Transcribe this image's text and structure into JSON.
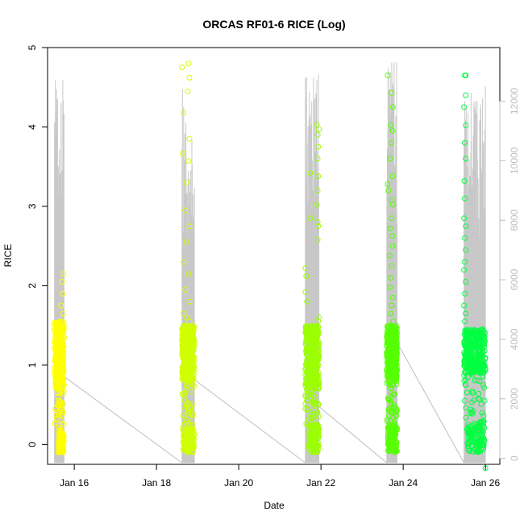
{
  "chart_data": {
    "type": "scatter",
    "title": "ORCAS RF01-6 RICE (Log)",
    "xlabel": "Date",
    "ylabel": "RICE",
    "x_unit": "days (January)",
    "xlim": [
      15.35,
      26.35
    ],
    "ylim": [
      -0.25,
      5
    ],
    "y_ticks": [
      0,
      1,
      2,
      3,
      4,
      5
    ],
    "x_ticks": [
      {
        "value": 16,
        "label": "Jan 16"
      },
      {
        "value": 18,
        "label": "Jan 18"
      },
      {
        "value": 20,
        "label": "Jan 20"
      },
      {
        "value": 22,
        "label": "Jan 22"
      },
      {
        "value": 24,
        "label": "Jan 24"
      },
      {
        "value": 26,
        "label": "Jan 26"
      }
    ],
    "y2_ticks": [
      0,
      2000,
      4000,
      6000,
      8000,
      10000,
      12000
    ],
    "y2lim": [
      -200,
      13800
    ],
    "y2_color": "#bebebe",
    "altitude_line_color": "#bebebe",
    "grid": false,
    "legend": "none",
    "flights": [
      {
        "start": 15.52,
        "end": 15.75,
        "color": "#ffff00",
        "bulk": [
          0.7,
          1.55
        ],
        "low": [
          -0.1,
          0.15
        ],
        "low_window": [
          15.62,
          15.75
        ],
        "high": [
          [
            15.72,
            1.9
          ],
          [
            15.7,
            2.05
          ],
          [
            15.74,
            2.15
          ],
          [
            15.68,
            1.75
          ],
          [
            15.73,
            1.65
          ],
          [
            15.6,
            0.65
          ],
          [
            15.75,
            0.75
          ],
          [
            15.71,
            0.4
          ],
          [
            15.68,
            0.3
          ]
        ],
        "alt_spikes": [
          [
            15.54,
            12700
          ],
          [
            15.57,
            12400
          ],
          [
            15.59,
            9500
          ],
          [
            15.63,
            7800
          ],
          [
            15.66,
            8500
          ],
          [
            15.69,
            8200
          ],
          [
            15.72,
            12700
          ]
        ]
      },
      {
        "start": 18.62,
        "end": 18.92,
        "color": "#d0ff00",
        "bulk": [
          0.8,
          1.5
        ],
        "low": [
          -0.1,
          0.2
        ],
        "low_window": [
          18.65,
          18.92
        ],
        "high": [
          [
            18.62,
            4.75
          ],
          [
            18.78,
            4.8
          ],
          [
            18.8,
            4.62
          ],
          [
            18.76,
            4.45
          ],
          [
            18.66,
            4.18
          ],
          [
            18.8,
            3.85
          ],
          [
            18.64,
            3.67
          ],
          [
            18.78,
            3.57
          ],
          [
            18.72,
            3.3
          ],
          [
            18.7,
            2.95
          ],
          [
            18.8,
            2.75
          ],
          [
            18.72,
            2.55
          ],
          [
            18.66,
            2.3
          ],
          [
            18.78,
            2.15
          ],
          [
            18.7,
            1.95
          ],
          [
            18.8,
            1.8
          ],
          [
            18.66,
            1.65
          ],
          [
            18.72,
            1.6
          ],
          [
            18.8,
            1.55
          ],
          [
            18.68,
            0.65
          ],
          [
            18.76,
            0.45
          ],
          [
            18.7,
            0.35
          ]
        ],
        "alt_spikes": [
          [
            18.63,
            12400
          ],
          [
            18.66,
            11800
          ],
          [
            18.69,
            10900
          ],
          [
            18.72,
            8800
          ],
          [
            18.75,
            7200
          ],
          [
            18.8,
            9400
          ],
          [
            18.86,
            9500
          ]
        ]
      },
      {
        "start": 21.62,
        "end": 21.95,
        "color": "#9cff00",
        "bulk": [
          0.7,
          1.5
        ],
        "low": [
          -0.1,
          0.25
        ],
        "low_window": [
          21.7,
          21.95
        ],
        "high": [
          [
            21.9,
            4.03
          ],
          [
            21.95,
            3.97
          ],
          [
            21.92,
            3.9
          ],
          [
            21.93,
            3.75
          ],
          [
            21.92,
            3.6
          ],
          [
            21.93,
            3.38
          ],
          [
            21.74,
            3.42
          ],
          [
            21.92,
            3.2
          ],
          [
            21.9,
            3.02
          ],
          [
            21.93,
            2.75
          ],
          [
            21.92,
            2.58
          ],
          [
            21.74,
            2.85
          ],
          [
            21.92,
            2.8
          ],
          [
            21.62,
            2.22
          ],
          [
            21.64,
            2.12
          ],
          [
            21.62,
            1.92
          ],
          [
            21.66,
            1.8
          ],
          [
            21.95,
            1.6
          ],
          [
            21.93,
            1.55
          ],
          [
            21.62,
            0.62
          ],
          [
            21.66,
            0.55
          ],
          [
            21.9,
            0.4
          ],
          [
            21.94,
            0.35
          ]
        ],
        "alt_spikes": [
          [
            21.65,
            12800
          ],
          [
            21.72,
            12300
          ],
          [
            21.76,
            11200
          ],
          [
            21.8,
            9000
          ],
          [
            21.84,
            12000
          ],
          [
            21.9,
            12700
          ],
          [
            21.94,
            12900
          ]
        ]
      },
      {
        "start": 23.6,
        "end": 23.85,
        "color": "#55ff00",
        "bulk": [
          0.8,
          1.5
        ],
        "low": [
          -0.1,
          0.25
        ],
        "low_window": [
          23.62,
          23.85
        ],
        "high": [
          [
            23.62,
            4.65
          ],
          [
            23.72,
            4.43
          ],
          [
            23.75,
            4.25
          ],
          [
            23.7,
            4.02
          ],
          [
            23.74,
            3.95
          ],
          [
            23.72,
            3.8
          ],
          [
            23.68,
            3.6
          ],
          [
            23.74,
            3.38
          ],
          [
            23.75,
            3.02
          ],
          [
            23.62,
            3.28
          ],
          [
            23.64,
            3.2
          ],
          [
            23.72,
            3.08
          ],
          [
            23.72,
            2.85
          ],
          [
            23.68,
            2.72
          ],
          [
            23.73,
            2.63
          ],
          [
            23.74,
            2.5
          ],
          [
            23.67,
            2.38
          ],
          [
            23.72,
            2.25
          ],
          [
            23.7,
            2.1
          ],
          [
            23.68,
            1.98
          ],
          [
            23.75,
            1.85
          ],
          [
            23.72,
            1.75
          ],
          [
            23.7,
            1.65
          ],
          [
            23.76,
            1.55
          ],
          [
            23.68,
            0.75
          ],
          [
            23.72,
            0.65
          ],
          [
            23.78,
            0.5
          ],
          [
            23.73,
            0.4
          ]
        ],
        "alt_spikes": [
          [
            23.63,
            13000
          ],
          [
            23.65,
            12400
          ],
          [
            23.7,
            10800
          ],
          [
            23.74,
            12600
          ],
          [
            23.78,
            13300
          ],
          [
            23.84,
            13300
          ]
        ]
      },
      {
        "start": 25.48,
        "end": 26.0,
        "color": "#00ff40",
        "bulk": [
          0.9,
          1.45
        ],
        "low": [
          -0.1,
          0.25
        ],
        "low_window": [
          25.55,
          25.98
        ],
        "high": [
          [
            25.52,
            4.65
          ],
          [
            25.5,
            4.65
          ],
          [
            25.52,
            4.4
          ],
          [
            25.48,
            4.25
          ],
          [
            25.52,
            4.02
          ],
          [
            25.5,
            3.8
          ],
          [
            25.52,
            3.6
          ],
          [
            25.49,
            3.32
          ],
          [
            25.5,
            3.1
          ],
          [
            25.48,
            2.85
          ],
          [
            25.52,
            2.75
          ],
          [
            25.5,
            2.6
          ],
          [
            25.52,
            2.45
          ],
          [
            25.5,
            2.3
          ],
          [
            25.48,
            2.2
          ],
          [
            25.52,
            2.05
          ],
          [
            25.5,
            1.9
          ],
          [
            25.48,
            1.75
          ],
          [
            25.52,
            1.65
          ],
          [
            25.5,
            1.55
          ],
          [
            25.52,
            0.75
          ],
          [
            25.5,
            0.55
          ],
          [
            25.95,
            0.75
          ],
          [
            25.98,
            0.55
          ],
          [
            25.92,
            0.4
          ],
          [
            26.0,
            -0.3
          ]
        ],
        "alt_spikes": [
          [
            25.5,
            12000
          ],
          [
            25.53,
            11500
          ],
          [
            25.57,
            9800
          ],
          [
            25.72,
            12000
          ],
          [
            25.8,
            12000
          ],
          [
            25.88,
            11800
          ],
          [
            25.93,
            12100
          ],
          [
            26.0,
            12500
          ]
        ]
      }
    ]
  }
}
